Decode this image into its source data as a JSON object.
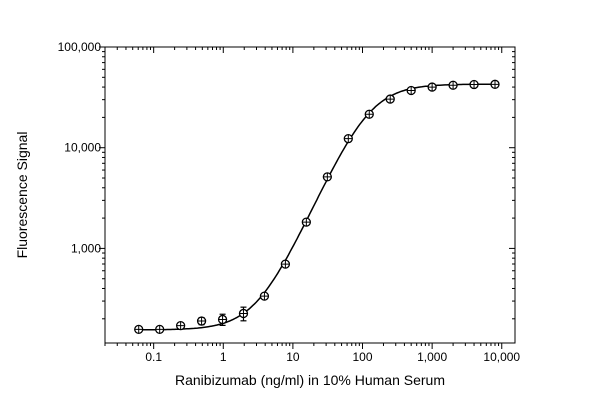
{
  "chart_data": {
    "type": "scatter",
    "title": "",
    "xlabel": "Ranibizumab (ng/ml) in 10% Human Serum",
    "ylabel": "Fluorescence Signal",
    "xscale": "log",
    "yscale": "log",
    "xlim": [
      0.02,
      15500
    ],
    "ylim": [
      115,
      100000
    ],
    "grid": false,
    "legend": "none",
    "x_ticks": [
      {
        "v": 0.1,
        "label": "0.1"
      },
      {
        "v": 1,
        "label": "1"
      },
      {
        "v": 10,
        "label": "10"
      },
      {
        "v": 100,
        "label": "100"
      },
      {
        "v": 1000,
        "label": "1,000"
      },
      {
        "v": 10000,
        "label": "10,000"
      }
    ],
    "y_ticks": [
      {
        "v": 1000,
        "label": "1,000"
      },
      {
        "v": 10000,
        "label": "10,000"
      },
      {
        "v": 100000,
        "label": "100,000"
      }
    ],
    "series": [
      {
        "name": "Ranibizumab",
        "x": [
          0.061,
          0.122,
          0.244,
          0.488,
          0.977,
          1.95,
          3.9,
          7.8,
          15.6,
          31.25,
          62.5,
          125,
          250,
          500,
          1000,
          2000,
          4000,
          8000
        ],
        "y": [
          157,
          157,
          171,
          190,
          197,
          226,
          336,
          698,
          1823,
          5130,
          12300,
          21500,
          30400,
          37000,
          40000,
          41700,
          42400,
          42600
        ],
        "yerr": [
          0,
          0,
          8,
          15,
          25,
          35,
          12,
          0,
          0,
          0,
          0,
          0,
          0,
          0,
          0,
          0,
          0,
          0
        ]
      }
    ],
    "fit": {
      "model": "4PL",
      "bottom": 155,
      "top": 42800,
      "ec50": 120,
      "hill": 1.55
    }
  }
}
